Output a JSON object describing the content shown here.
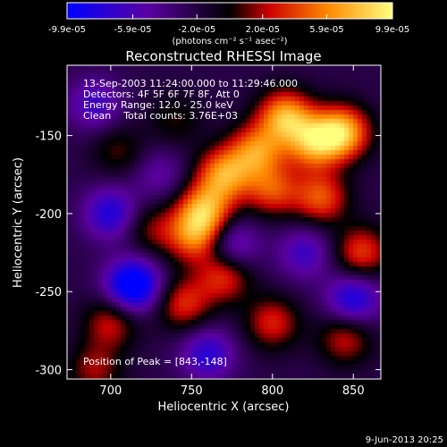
{
  "chart_data": {
    "type": "heatmap",
    "title": "Reconstructed RHESSI Image",
    "xlabel": "Heliocentric X (arcsec)",
    "ylabel": "Heliocentric Y (arcsec)",
    "xlim": [
      673,
      867
    ],
    "ylim": [
      -306,
      -105
    ],
    "x_ticks": [
      "700",
      "750",
      "800",
      "850"
    ],
    "x_tick_values": [
      700,
      750,
      800,
      850
    ],
    "y_ticks": [
      "-150",
      "-200",
      "-250",
      "-300"
    ],
    "y_tick_values": [
      -150,
      -200,
      -250,
      -300
    ],
    "colorbar": {
      "min": -9.9e-05,
      "max": 9.9e-05,
      "ticks": [
        "-9.9e-05",
        "-5.9e-05",
        "-2.0e-05",
        "2.0e-05",
        "5.9e-05",
        "9.9e-05"
      ],
      "tick_values": [
        -9.9e-05,
        -5.9e-05,
        -2e-05,
        2e-05,
        5.9e-05,
        9.9e-05
      ],
      "units": "(photons cm⁻² s⁻¹ asec⁻²)",
      "colors": [
        "#0000ff",
        "#5a00a0",
        "#000000",
        "#cc0000",
        "#ff8800",
        "#ffff80"
      ]
    },
    "annotations": {
      "time_range": "13-Sep-2003 11:24:00.000 to 11:29:46.000",
      "detectors": "Detectors: 4F 5F 6F 7F 8F, Att 0",
      "energy": "Energy Range: 12.0 - 25.0 keV",
      "clean": "Clean    Total counts: 3.76E+03",
      "peak": "Position of Peak = [843,-148]"
    },
    "peak": [
      843,
      -148
    ],
    "sources": [
      {
        "x": 843,
        "y": -148,
        "amp": 9.9e-05
      },
      {
        "x": 808,
        "y": -138,
        "amp": 9e-05
      },
      {
        "x": 825,
        "y": -155,
        "amp": 8e-05
      },
      {
        "x": 790,
        "y": -160,
        "amp": 7.5e-05
      },
      {
        "x": 770,
        "y": -175,
        "amp": 8.2e-05
      },
      {
        "x": 758,
        "y": -198,
        "amp": 8.5e-05
      },
      {
        "x": 752,
        "y": -215,
        "amp": 7e-05
      },
      {
        "x": 800,
        "y": -185,
        "amp": 6e-05
      },
      {
        "x": 830,
        "y": -190,
        "amp": 6.5e-05
      },
      {
        "x": 855,
        "y": -225,
        "amp": 6e-05
      },
      {
        "x": 770,
        "y": -240,
        "amp": 5.8e-05
      },
      {
        "x": 745,
        "y": -258,
        "amp": 5.5e-05
      },
      {
        "x": 800,
        "y": -270,
        "amp": 5.2e-05
      },
      {
        "x": 845,
        "y": -280,
        "amp": 4.8e-05
      },
      {
        "x": 700,
        "y": -270,
        "amp": 4.8e-05
      },
      {
        "x": 690,
        "y": -300,
        "amp": 4e-05
      },
      {
        "x": 725,
        "y": -210,
        "amp": 3.5e-05
      },
      {
        "x": 705,
        "y": -160,
        "amp": 3e-05
      },
      {
        "x": 740,
        "y": -140,
        "amp": 2.5e-05
      },
      {
        "x": 714,
        "y": -246,
        "amp": -9.9e-05
      },
      {
        "x": 700,
        "y": -200,
        "amp": -6e-05
      },
      {
        "x": 850,
        "y": -255,
        "amp": -6.5e-05
      },
      {
        "x": 775,
        "y": -220,
        "amp": -5e-05
      },
      {
        "x": 760,
        "y": -290,
        "amp": -5.5e-05
      },
      {
        "x": 690,
        "y": -130,
        "amp": -4.5e-05
      },
      {
        "x": 820,
        "y": -225,
        "amp": -4.5e-05
      },
      {
        "x": 730,
        "y": -175,
        "amp": -3e-05
      }
    ]
  },
  "footer": {
    "timestamp": "9-Jun-2013 20:25"
  }
}
